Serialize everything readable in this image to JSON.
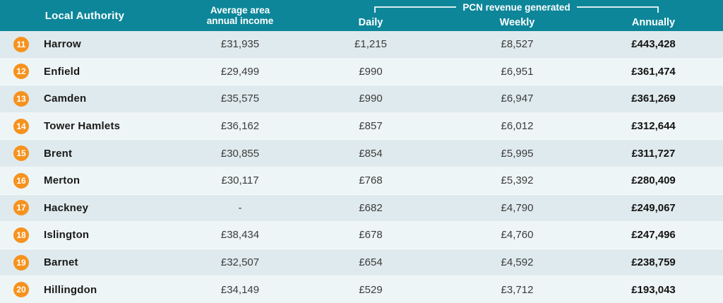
{
  "colors": {
    "header_teal": "#0d8699",
    "badge_orange": "#f6921e",
    "row_dark": "#dfeaee",
    "row_light": "#eef5f7"
  },
  "header": {
    "local_authority": "Local Authority",
    "income_line1": "Average area",
    "income_line2": "annual income",
    "pcn_group_title": "PCN revenue generated",
    "daily": "Daily",
    "weekly": "Weekly",
    "annually": "Annually"
  },
  "chart_data": {
    "type": "table",
    "title": "PCN revenue generated",
    "columns": [
      "Rank",
      "Local Authority",
      "Average area annual income",
      "Daily",
      "Weekly",
      "Annually"
    ],
    "column_group": {
      "label": "PCN revenue generated",
      "spans": [
        "Daily",
        "Weekly",
        "Annually"
      ]
    },
    "rows": [
      {
        "rank": "11",
        "name": "Harrow",
        "income": "£31,935",
        "daily": "£1,215",
        "weekly": "£8,527",
        "annually": "£443,428"
      },
      {
        "rank": "12",
        "name": "Enfield",
        "income": "£29,499",
        "daily": "£990",
        "weekly": "£6,951",
        "annually": "£361,474"
      },
      {
        "rank": "13",
        "name": "Camden",
        "income": "£35,575",
        "daily": "£990",
        "weekly": "£6,947",
        "annually": "£361,269"
      },
      {
        "rank": "14",
        "name": "Tower Hamlets",
        "income": "£36,162",
        "daily": "£857",
        "weekly": "£6,012",
        "annually": "£312,644"
      },
      {
        "rank": "15",
        "name": "Brent",
        "income": "£30,855",
        "daily": "£854",
        "weekly": "£5,995",
        "annually": "£311,727"
      },
      {
        "rank": "16",
        "name": "Merton",
        "income": "£30,117",
        "daily": "£768",
        "weekly": "£5,392",
        "annually": "£280,409"
      },
      {
        "rank": "17",
        "name": "Hackney",
        "income": "-",
        "daily": "£682",
        "weekly": "£4,790",
        "annually": "£249,067"
      },
      {
        "rank": "18",
        "name": "Islington",
        "income": "£38,434",
        "daily": "£678",
        "weekly": "£4,760",
        "annually": "£247,496"
      },
      {
        "rank": "19",
        "name": "Barnet",
        "income": "£32,507",
        "daily": "£654",
        "weekly": "£4,592",
        "annually": "£238,759"
      },
      {
        "rank": "20",
        "name": "Hillingdon",
        "income": "£34,149",
        "daily": "£529",
        "weekly": "£3,712",
        "annually": "£193,043"
      }
    ]
  }
}
